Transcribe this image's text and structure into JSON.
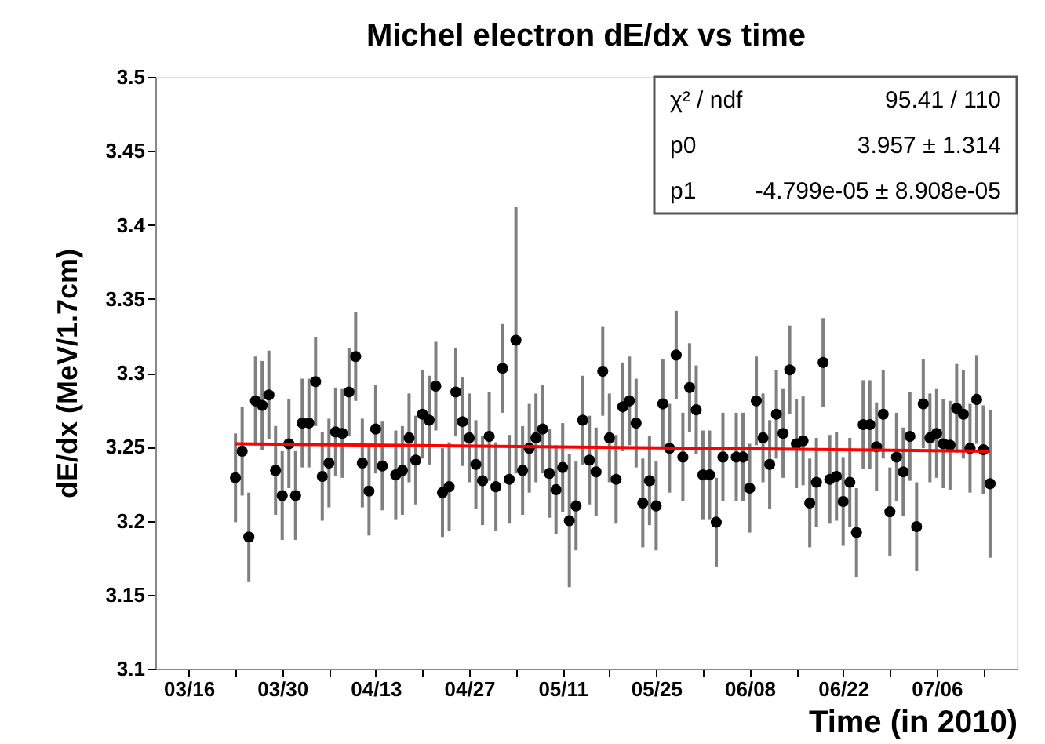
{
  "chart_data": {
    "type": "scatter",
    "title": "Michel electron dE/dx vs time",
    "xlabel": "Time (in 2010)",
    "ylabel": "dE/dx (MeV/1.7cm)",
    "x": [
      "2010-03-23",
      "2010-03-24",
      "2010-03-25",
      "2010-03-26",
      "2010-03-27",
      "2010-03-28",
      "2010-03-29",
      "2010-03-30",
      "2010-03-31",
      "2010-04-01",
      "2010-04-02",
      "2010-04-03",
      "2010-04-04",
      "2010-04-05",
      "2010-04-06",
      "2010-04-07",
      "2010-04-08",
      "2010-04-09",
      "2010-04-10",
      "2010-04-11",
      "2010-04-12",
      "2010-04-13",
      "2010-04-14",
      "2010-04-16",
      "2010-04-17",
      "2010-04-18",
      "2010-04-19",
      "2010-04-20",
      "2010-04-21",
      "2010-04-22",
      "2010-04-23",
      "2010-04-24",
      "2010-04-25",
      "2010-04-26",
      "2010-04-27",
      "2010-04-28",
      "2010-04-29",
      "2010-04-30",
      "2010-05-01",
      "2010-05-02",
      "2010-05-03",
      "2010-05-04",
      "2010-05-05",
      "2010-05-06",
      "2010-05-07",
      "2010-05-08",
      "2010-05-09",
      "2010-05-10",
      "2010-05-11",
      "2010-05-12",
      "2010-05-13",
      "2010-05-14",
      "2010-05-15",
      "2010-05-16",
      "2010-05-17",
      "2010-05-18",
      "2010-05-19",
      "2010-05-20",
      "2010-05-21",
      "2010-05-22",
      "2010-05-23",
      "2010-05-24",
      "2010-05-25",
      "2010-05-26",
      "2010-05-27",
      "2010-05-28",
      "2010-05-29",
      "2010-05-30",
      "2010-05-31",
      "2010-06-01",
      "2010-06-02",
      "2010-06-03",
      "2010-06-04",
      "2010-06-06",
      "2010-06-07",
      "2010-06-08",
      "2010-06-09",
      "2010-06-10",
      "2010-06-11",
      "2010-06-12",
      "2010-06-13",
      "2010-06-14",
      "2010-06-15",
      "2010-06-16",
      "2010-06-17",
      "2010-06-18",
      "2010-06-19",
      "2010-06-20",
      "2010-06-21",
      "2010-06-22",
      "2010-06-23",
      "2010-06-24",
      "2010-06-25",
      "2010-06-26",
      "2010-06-27",
      "2010-06-28",
      "2010-06-29",
      "2010-06-30",
      "2010-07-01",
      "2010-07-02",
      "2010-07-03",
      "2010-07-04",
      "2010-07-05",
      "2010-07-06",
      "2010-07-07",
      "2010-07-08",
      "2010-07-09",
      "2010-07-10",
      "2010-07-11",
      "2010-07-12",
      "2010-07-13",
      "2010-07-14"
    ],
    "series": [
      {
        "color": "#000000",
        "marker": "circle",
        "values": [
          3.229,
          3.247,
          3.189,
          3.281,
          3.278,
          3.285,
          3.234,
          3.217,
          3.252,
          3.217,
          3.266,
          3.266,
          3.294,
          3.23,
          3.239,
          3.26,
          3.259,
          3.287,
          3.311,
          3.239,
          3.22,
          3.262,
          3.237,
          3.231,
          3.234,
          3.256,
          3.241,
          3.272,
          3.268,
          3.291,
          3.219,
          3.223,
          3.287,
          3.267,
          3.256,
          3.238,
          3.227,
          3.257,
          3.223,
          3.303,
          3.228,
          3.322,
          3.234,
          3.249,
          3.256,
          3.262,
          3.232,
          3.221,
          3.236,
          3.2,
          3.21,
          3.268,
          3.241,
          3.233,
          3.301,
          3.256,
          3.228,
          3.277,
          3.281,
          3.266,
          3.212,
          3.227,
          3.21,
          3.279,
          3.249,
          3.312,
          3.243,
          3.29,
          3.275,
          3.231,
          3.231,
          3.199,
          3.243,
          3.243,
          3.243,
          3.222,
          3.281,
          3.256,
          3.238,
          3.272,
          3.259,
          3.302,
          3.252,
          3.254,
          3.212,
          3.226,
          3.307,
          3.228,
          3.23,
          3.213,
          3.226,
          3.192,
          3.265,
          3.265,
          3.25,
          3.272,
          3.206,
          3.243,
          3.233,
          3.257,
          3.196,
          3.279,
          3.256,
          3.259,
          3.252,
          3.251,
          3.276,
          3.272,
          3.249,
          3.282,
          3.248,
          3.225
        ],
        "errors": [
          0.03,
          0.03,
          0.03,
          0.03,
          0.03,
          0.03,
          0.03,
          0.03,
          0.03,
          0.03,
          0.03,
          0.03,
          0.03,
          0.03,
          0.03,
          0.03,
          0.03,
          0.03,
          0.03,
          0.03,
          0.03,
          0.03,
          0.03,
          0.03,
          0.03,
          0.03,
          0.03,
          0.03,
          0.03,
          0.03,
          0.03,
          0.03,
          0.03,
          0.03,
          0.03,
          0.03,
          0.03,
          0.03,
          0.03,
          0.03,
          0.03,
          0.09,
          0.03,
          0.03,
          0.03,
          0.03,
          0.03,
          0.03,
          0.03,
          0.045,
          0.03,
          0.03,
          0.03,
          0.03,
          0.03,
          0.03,
          0.03,
          0.03,
          0.03,
          0.03,
          0.03,
          0.03,
          0.03,
          0.03,
          0.03,
          0.03,
          0.03,
          0.03,
          0.03,
          0.03,
          0.03,
          0.03,
          0.03,
          0.03,
          0.03,
          0.03,
          0.03,
          0.03,
          0.03,
          0.03,
          0.03,
          0.03,
          0.03,
          0.03,
          0.03,
          0.03,
          0.03,
          0.03,
          0.03,
          0.03,
          0.03,
          0.03,
          0.03,
          0.03,
          0.03,
          0.03,
          0.03,
          0.03,
          0.03,
          0.03,
          0.03,
          0.03,
          0.03,
          0.03,
          0.03,
          0.03,
          0.03,
          0.03,
          0.03,
          0.03,
          0.03,
          0.05
        ]
      },
      {
        "type": "line",
        "line_style": "solid",
        "color": "#ff0000",
        "x": [
          "2010-03-23",
          "2010-07-14"
        ],
        "values": [
          3.252,
          3.247
        ]
      }
    ],
    "xlim": [
      "2010-03-11",
      "2010-07-18"
    ],
    "xticks": [
      {
        "value": "2010-03-16",
        "label": "03/16"
      },
      {
        "value": "2010-03-23",
        "label": null
      },
      {
        "value": "2010-03-30",
        "label": "03/30"
      },
      {
        "value": "2010-04-06",
        "label": null
      },
      {
        "value": "2010-04-13",
        "label": "04/13"
      },
      {
        "value": "2010-04-20",
        "label": null
      },
      {
        "value": "2010-04-27",
        "label": "04/27"
      },
      {
        "value": "2010-05-04",
        "label": null
      },
      {
        "value": "2010-05-11",
        "label": "05/11"
      },
      {
        "value": "2010-05-18",
        "label": null
      },
      {
        "value": "2010-05-25",
        "label": "05/25"
      },
      {
        "value": "2010-06-01",
        "label": null
      },
      {
        "value": "2010-06-08",
        "label": "06/08"
      },
      {
        "value": "2010-06-15",
        "label": null
      },
      {
        "value": "2010-06-22",
        "label": "06/22"
      },
      {
        "value": "2010-06-29",
        "label": null
      },
      {
        "value": "2010-07-06",
        "label": "07/06"
      },
      {
        "value": "2010-07-13",
        "label": null
      }
    ],
    "ylim": [
      3.1,
      3.5
    ],
    "yticks": [
      3.1,
      3.15,
      3.2,
      3.25,
      3.3,
      3.35,
      3.4,
      3.45,
      3.5
    ],
    "grid": false,
    "annotations": [
      "χ² / ndf",
      "95.41 / 110",
      "p0",
      "3.957 ± 1.314",
      "p1",
      "-4.799e-05 ± 8.908e-05"
    ]
  }
}
